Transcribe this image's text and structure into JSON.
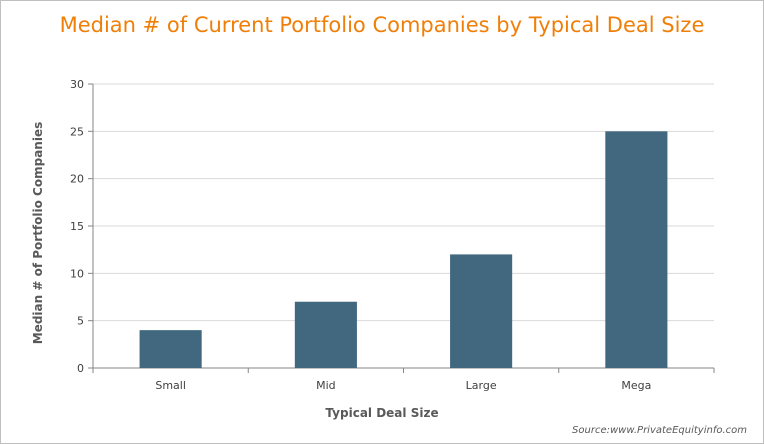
{
  "chart_data": {
    "type": "bar",
    "title": "Median # of Current Portfolio Companies by Typical Deal Size",
    "xlabel": "Typical Deal Size",
    "ylabel": "Median # of Portfolio Companies",
    "categories": [
      "Small",
      "Mid",
      "Large",
      "Mega"
    ],
    "values": [
      4,
      7,
      12,
      25
    ],
    "ylim": [
      0,
      30
    ],
    "yticks": [
      0,
      5,
      10,
      15,
      20,
      25,
      30
    ],
    "grid": true,
    "legend": "none",
    "bar_color": "#41687f",
    "source": "Source:www.PrivateEquityinfo.com"
  },
  "colors": {
    "title": "#f07f09",
    "gridline": "#d9d9d9",
    "axis": "#868686"
  }
}
